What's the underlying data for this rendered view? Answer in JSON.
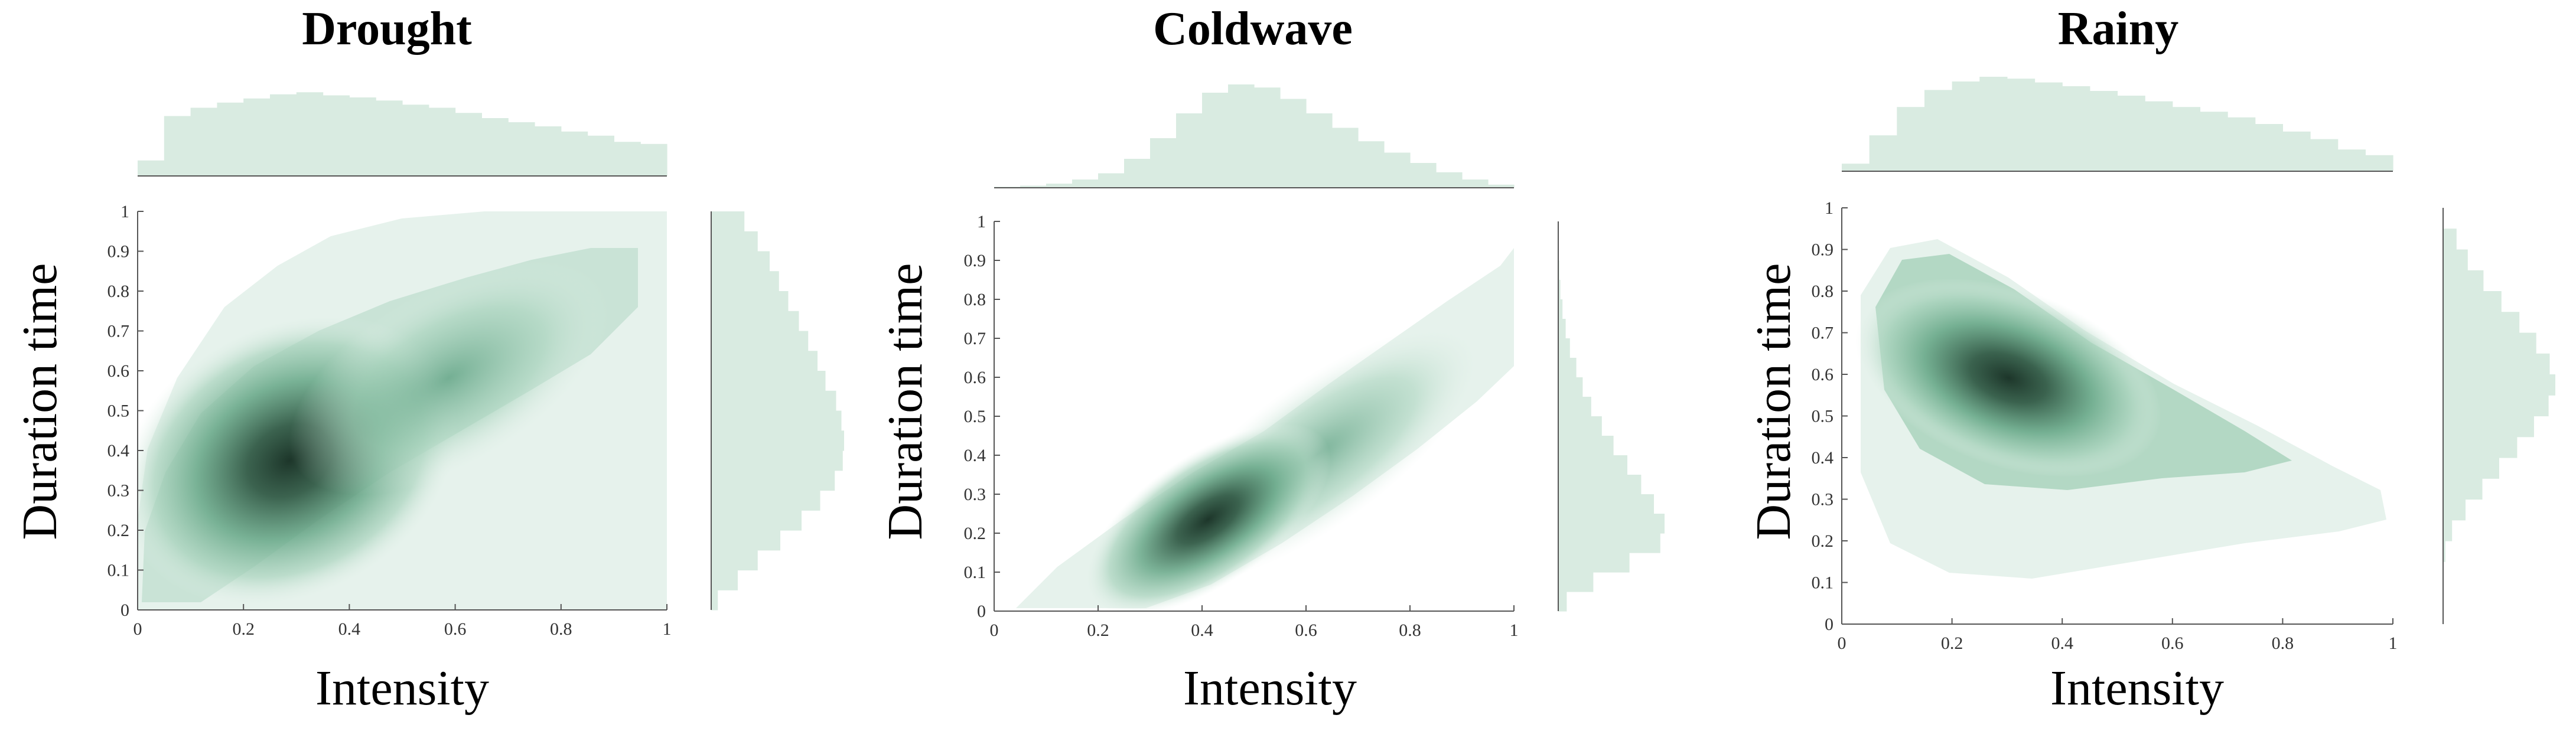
{
  "colors": {
    "hist_fill": "#d9ebe1",
    "hist_edge": "#c3ddd0",
    "density_light": "#e4f1ea",
    "density_mid": "#7dbfa0",
    "density_dark": "#203a2d",
    "axis": "#555555",
    "text": "#000000"
  },
  "chart_data": [
    {
      "type": "scatter",
      "title": "Drought",
      "xlabel": "Intensity",
      "ylabel": "Duration time",
      "xlim": [
        0,
        1
      ],
      "ylim": [
        0,
        1
      ],
      "xticks": [
        "0",
        "0.2",
        "0.4",
        "0.6",
        "0.8",
        "1"
      ],
      "yticks": [
        "0",
        "0.1",
        "0.2",
        "0.3",
        "0.4",
        "0.5",
        "0.6",
        "0.7",
        "0.8",
        "0.9",
        "1"
      ],
      "density_centers": [
        [
          0.28,
          0.35
        ],
        [
          0.35,
          0.4
        ],
        [
          0.55,
          0.55
        ]
      ],
      "marginal_x": [
        0.15,
        0.58,
        0.66,
        0.71,
        0.75,
        0.79,
        0.81,
        0.78,
        0.76,
        0.73,
        0.69,
        0.66,
        0.61,
        0.56,
        0.52,
        0.48,
        0.43,
        0.39,
        0.33,
        0.31
      ],
      "marginal_y": [
        0.05,
        0.2,
        0.35,
        0.52,
        0.68,
        0.82,
        0.93,
        0.99,
        1.0,
        0.98,
        0.94,
        0.86,
        0.8,
        0.73,
        0.66,
        0.58,
        0.51,
        0.44,
        0.35,
        0.25
      ]
    },
    {
      "type": "scatter",
      "title": "Coldwave",
      "xlabel": "Intensity",
      "ylabel": "Duration time",
      "xlim": [
        0,
        1
      ],
      "ylim": [
        0,
        1
      ],
      "xticks": [
        "0",
        "0.2",
        "0.4",
        "0.6",
        "0.8",
        "1"
      ],
      "yticks": [
        "0",
        "0.1",
        "0.2",
        "0.3",
        "0.4",
        "0.5",
        "0.6",
        "0.7",
        "0.8",
        "0.9",
        "1"
      ],
      "density_centers": [
        [
          0.43,
          0.26
        ],
        [
          0.55,
          0.4
        ],
        [
          0.7,
          0.55
        ]
      ],
      "marginal_x": [
        0.01,
        0.02,
        0.04,
        0.08,
        0.14,
        0.28,
        0.48,
        0.72,
        0.92,
        1.0,
        0.97,
        0.86,
        0.72,
        0.58,
        0.45,
        0.34,
        0.24,
        0.15,
        0.08,
        0.03
      ],
      "marginal_y": [
        0.08,
        0.33,
        0.67,
        0.96,
        1.0,
        0.9,
        0.78,
        0.65,
        0.52,
        0.41,
        0.31,
        0.23,
        0.17,
        0.11,
        0.07,
        0.04,
        0.02,
        0.01,
        0.0,
        0.0
      ]
    },
    {
      "type": "scatter",
      "title": "Rainy",
      "xlabel": "Intensity",
      "ylabel": "Duration time",
      "xlim": [
        0,
        1
      ],
      "ylim": [
        0,
        1
      ],
      "xticks": [
        "0",
        "0.2",
        "0.4",
        "0.6",
        "0.8",
        "1"
      ],
      "yticks": [
        "0",
        "0.1",
        "0.2",
        "0.3",
        "0.4",
        "0.5",
        "0.6",
        "0.7",
        "0.8",
        "0.9",
        "1"
      ],
      "density_centers": [
        [
          0.35,
          0.6
        ],
        [
          0.25,
          0.7
        ],
        [
          0.45,
          0.5
        ]
      ],
      "marginal_x": [
        0.08,
        0.38,
        0.68,
        0.86,
        0.95,
        1.0,
        0.98,
        0.94,
        0.9,
        0.85,
        0.8,
        0.74,
        0.68,
        0.63,
        0.57,
        0.5,
        0.42,
        0.34,
        0.23,
        0.17
      ],
      "marginal_y": [
        0.0,
        0.0,
        0.0,
        0.02,
        0.08,
        0.2,
        0.35,
        0.5,
        0.66,
        0.81,
        0.94,
        1.0,
        0.95,
        0.83,
        0.68,
        0.52,
        0.36,
        0.22,
        0.12,
        0.0
      ]
    }
  ]
}
